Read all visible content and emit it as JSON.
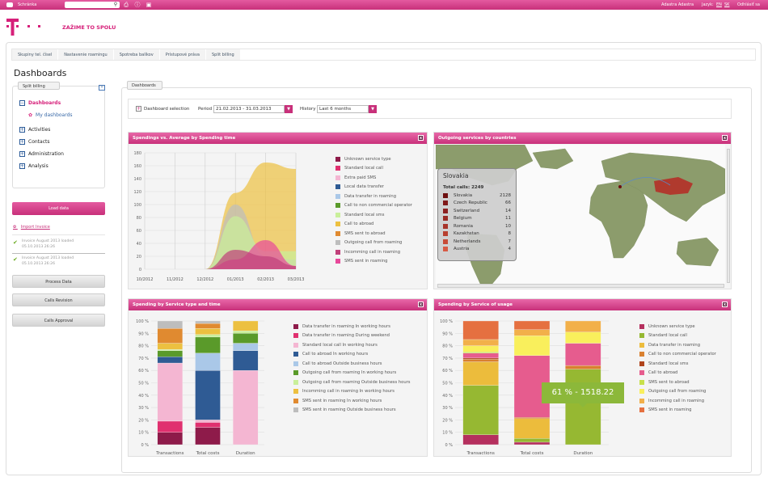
{
  "topbar": {
    "shortcut_label": "Schránka",
    "search_placeholder": "",
    "user": "Adastra Adastra",
    "lang_label": "Jazyk:",
    "lang_en": "EN",
    "lang_sk": "SK",
    "logout": "Odhlásiť sa",
    "icons": [
      "search-icon",
      "print-icon",
      "info-icon",
      "export-icon"
    ]
  },
  "header": {
    "slogan": "ZAŽIME TO SPOLU"
  },
  "tabs": [
    "Skupiny tel. čísel",
    "Nastavenie roamingu",
    "Spotreba balíkov",
    "Prístupové práva",
    "Split billing"
  ],
  "page_title": "Dashboards",
  "sidebar": {
    "box_label": "Split billing",
    "items": [
      {
        "label": "Dashboards",
        "expanded": true
      },
      {
        "label": "My dashboards",
        "sub": true
      },
      {
        "label": "Activities"
      },
      {
        "label": "Contacts"
      },
      {
        "label": "Administration"
      },
      {
        "label": "Analysis"
      }
    ],
    "load_data": "Load data",
    "import_invoice": "Import Invoice",
    "invoices": [
      {
        "line1": "Invoice August 2013 loaded",
        "line2": "05.10.2013 26:26"
      },
      {
        "line1": "Invoice August 2013 loaded",
        "line2": "05.10.2013 26:26"
      }
    ],
    "process_data": "Process Data",
    "calls_revision": "Calls Revision",
    "calls_approval": "Calls Approval"
  },
  "main": {
    "fieldset_label": "Dashboards",
    "dashboard_selection": "Dashboard selection",
    "period_label": "Period",
    "period_value": "21.02.2013 - 31.03.2013",
    "history_label": "History",
    "history_value": "Last 6 months"
  },
  "panels": {
    "p1": "Spendings vs. Average by Spending time",
    "p2": "Outgoing services by countries",
    "p3": "Spending by Service type and time",
    "p4": "Spending by Service of usage",
    "close": "x"
  },
  "map": {
    "title": "Slovakia",
    "total": "Total calls: 2249",
    "highlight": "#b03a2e",
    "land": "#8c9c6c",
    "rows": [
      {
        "country": "Slovakia",
        "value": 2128,
        "color": "#6e1010"
      },
      {
        "country": "Czech Republic",
        "value": 66,
        "color": "#801818"
      },
      {
        "country": "Switzerland",
        "value": 14,
        "color": "#8c2020"
      },
      {
        "country": "Belgium",
        "value": 11,
        "color": "#9a2a24"
      },
      {
        "country": "Romania",
        "value": 10,
        "color": "#a8342a"
      },
      {
        "country": "Kazakhstan",
        "value": 8,
        "color": "#b84030"
      },
      {
        "country": "Netherlands",
        "value": 7,
        "color": "#c84c38"
      },
      {
        "country": "Austria",
        "value": 4,
        "color": "#d85a44"
      }
    ]
  },
  "tooltip": "61 % - 1518.22",
  "chart_data": [
    {
      "type": "area",
      "ylim": [
        0,
        180
      ],
      "yticks": [
        0,
        20,
        40,
        60,
        80,
        100,
        120,
        140,
        160,
        180
      ],
      "categories": [
        "10/2012",
        "11/2012",
        "12/2012",
        "01/2013",
        "02/2013",
        "03/2013"
      ],
      "grid": true,
      "legend": "right",
      "series": [
        {
          "name": "Unknown service type",
          "color": "#8e1b4a",
          "values": [
            0,
            0,
            0,
            0,
            0,
            0
          ]
        },
        {
          "name": "Standard local call",
          "color": "#e0306f",
          "values": [
            0,
            0,
            0,
            0,
            0,
            0
          ]
        },
        {
          "name": "Extra paid SMS",
          "color": "#f4b6d2",
          "values": [
            0,
            0,
            0,
            0,
            0,
            0
          ]
        },
        {
          "name": "Local data transfer",
          "color": "#2f5b94",
          "values": [
            0,
            0,
            0,
            0,
            0,
            0
          ]
        },
        {
          "name": "Data transfer in roaming",
          "color": "#aac8e8",
          "values": [
            0,
            0,
            0,
            0,
            0,
            0
          ]
        },
        {
          "name": "Call to non commercial operator",
          "color": "#5a9a2a",
          "values": [
            0,
            0,
            0,
            0,
            0,
            0
          ]
        },
        {
          "name": "Standard local sms",
          "color": "#c9ef9a",
          "values": [
            0,
            0,
            0,
            82,
            28,
            28
          ]
        },
        {
          "name": "Call to abroad",
          "color": "#ecc040",
          "values": [
            0,
            0,
            0,
            118,
            165,
            155
          ]
        },
        {
          "name": "SMS sent to abroad",
          "color": "#e08a30",
          "values": [
            0,
            0,
            0,
            0,
            0,
            0
          ]
        },
        {
          "name": "Outgoing call from roaming",
          "color": "#bdbdbd",
          "values": [
            0,
            0,
            0,
            100,
            20,
            15
          ]
        },
        {
          "name": "Incomming call in roaming",
          "color": "#c0407a",
          "values": [
            0,
            0,
            0,
            30,
            20,
            5
          ]
        },
        {
          "name": "SMS sent in roaming",
          "color": "#e8489a",
          "values": [
            0,
            0,
            0,
            15,
            45,
            5
          ]
        }
      ]
    },
    {
      "type": "bar",
      "stacked": true,
      "unit": "%",
      "ylim": [
        0,
        100
      ],
      "yticks": [
        0,
        10,
        20,
        30,
        40,
        50,
        60,
        70,
        80,
        90,
        100
      ],
      "categories": [
        "Transactions",
        "Total costs",
        "Duration"
      ],
      "legend": "right",
      "series": [
        {
          "name": "Data transfer in roaming In working hours",
          "color": "#8e1b4a",
          "values": [
            10,
            14,
            0
          ]
        },
        {
          "name": "Data transfer in roaming During weekend",
          "color": "#e0306f",
          "values": [
            9,
            4,
            0
          ]
        },
        {
          "name": "Standard local call In working hours",
          "color": "#f4b6d2",
          "values": [
            47,
            2,
            60
          ]
        },
        {
          "name": "Call to abroad In working hours",
          "color": "#2f5b94",
          "values": [
            5,
            40,
            16
          ]
        },
        {
          "name": "Call to abroad Outside business hours",
          "color": "#aac8e8",
          "values": [
            0,
            14,
            6
          ]
        },
        {
          "name": "Outgoing call from roaming In working hours",
          "color": "#5a9a2a",
          "values": [
            5,
            13,
            8
          ]
        },
        {
          "name": "Outgoing call from roaming Outside business hours",
          "color": "#c9ef9a",
          "values": [
            1,
            2,
            2
          ]
        },
        {
          "name": "Incomming call in roaming In working hours",
          "color": "#ecc040",
          "values": [
            5,
            5,
            8
          ]
        },
        {
          "name": "SMS sent in roaming In working hours",
          "color": "#e08a30",
          "values": [
            12,
            4,
            0
          ]
        },
        {
          "name": "SMS sent in roaming Outside business hours",
          "color": "#bdbdbd",
          "values": [
            6,
            2,
            0
          ]
        }
      ]
    },
    {
      "type": "bar",
      "stacked": true,
      "unit": "%",
      "ylim": [
        0,
        100
      ],
      "yticks": [
        0,
        10,
        20,
        30,
        40,
        50,
        60,
        70,
        80,
        90,
        100
      ],
      "categories": [
        "Transactions",
        "Total costs",
        "Duration"
      ],
      "legend": "right",
      "series": [
        {
          "name": "Unknown service type",
          "color": "#b5305e",
          "values": [
            8,
            2,
            0
          ]
        },
        {
          "name": "Standard local call",
          "color": "#96b832",
          "values": [
            40,
            3,
            61
          ]
        },
        {
          "name": "Data transfer in roaming",
          "color": "#ecbc3c",
          "values": [
            19,
            16,
            0
          ]
        },
        {
          "name": "Call to non commercial operator",
          "color": "#d98030",
          "values": [
            2,
            1,
            3
          ]
        },
        {
          "name": "Standard local sms",
          "color": "#b0441c",
          "values": [
            1,
            0,
            0
          ]
        },
        {
          "name": "Call to abroad",
          "color": "#e65c8e",
          "values": [
            4,
            50,
            18
          ]
        },
        {
          "name": "SMS sent to abroad",
          "color": "#c7e04a",
          "values": [
            1,
            0,
            0
          ]
        },
        {
          "name": "Outgoing call from roaming",
          "color": "#f9ef5c",
          "values": [
            5,
            16,
            9
          ]
        },
        {
          "name": "Incomming call in roaming",
          "color": "#f2b04a",
          "values": [
            5,
            5,
            9
          ]
        },
        {
          "name": "SMS sent in roaming",
          "color": "#e57040",
          "values": [
            15,
            7,
            0
          ]
        }
      ]
    }
  ]
}
